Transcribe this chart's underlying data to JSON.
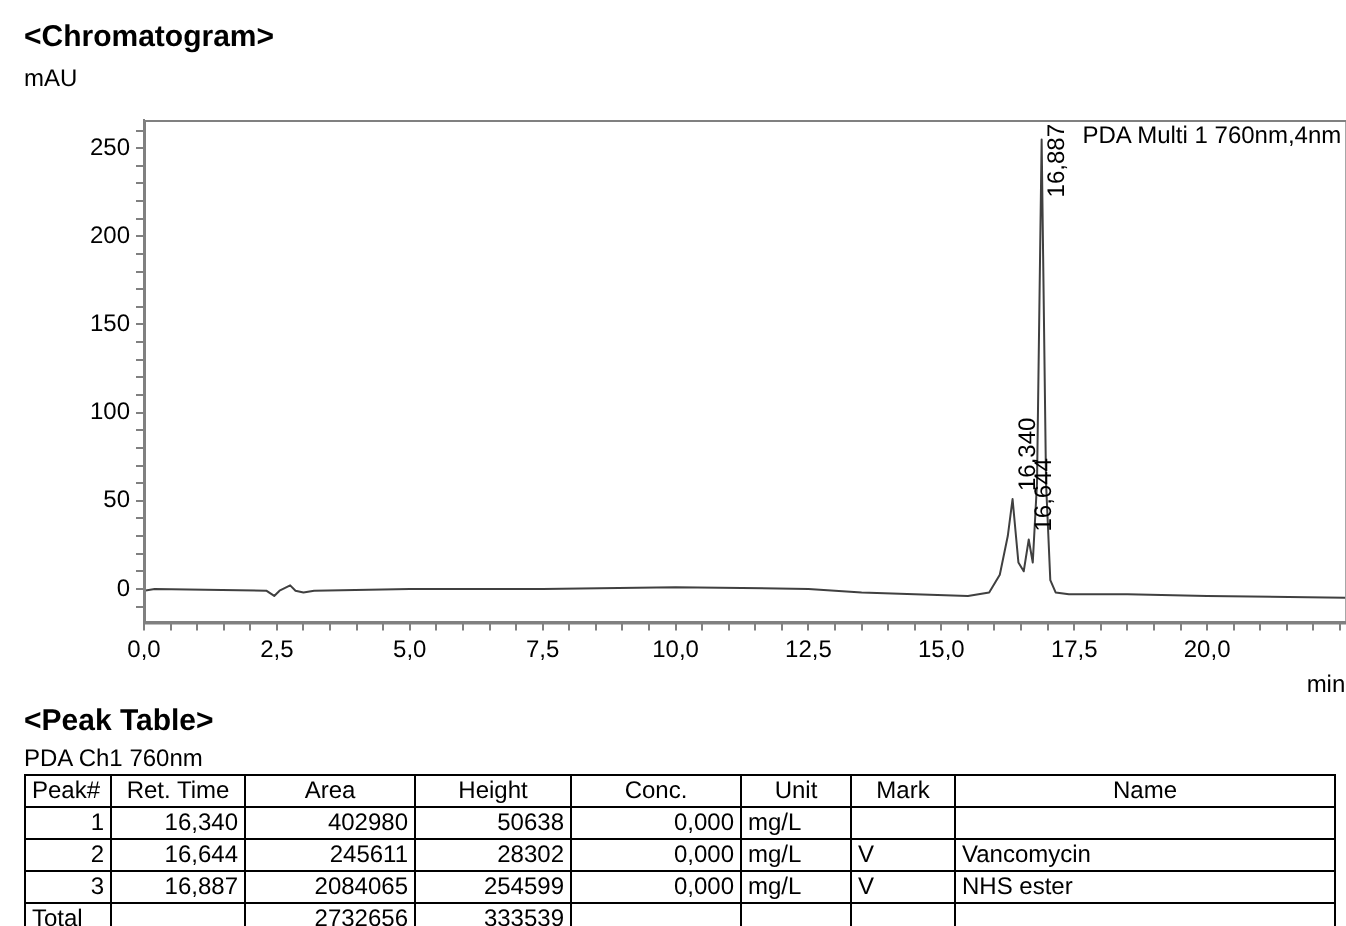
{
  "chart_data": [
    {
      "type": "line",
      "title": "<Chromatogram>",
      "xlabel": "min",
      "ylabel": "mAU",
      "color": "#404040",
      "grid": false,
      "legend": false,
      "marker": "none",
      "x": [
        0,
        0.2,
        2.3,
        2.45,
        2.55,
        2.75,
        2.85,
        3.0,
        3.2,
        5,
        7.5,
        10,
        12.5,
        13.5,
        14.5,
        15.5,
        15.9,
        16.1,
        16.25,
        16.34,
        16.45,
        16.55,
        16.644,
        16.72,
        16.8,
        16.887,
        16.97,
        17.05,
        17.15,
        17.4,
        18.5,
        20,
        22.6
      ],
      "values": [
        -1,
        0,
        -1,
        -4,
        -1,
        2,
        -1,
        -2,
        -1,
        0,
        0,
        1,
        0,
        -2,
        -3,
        -4,
        -2,
        8,
        30,
        51,
        15,
        10,
        28,
        15,
        60,
        255,
        60,
        5,
        -2,
        -3,
        -3,
        -4,
        -5
      ],
      "xlim": [
        0,
        22.6
      ],
      "xticks": [
        {
          "value": 0,
          "label": "0,0"
        },
        {
          "value": 0.5,
          "label": null
        },
        {
          "value": 1,
          "label": null
        },
        {
          "value": 1.5,
          "label": null
        },
        {
          "value": 2,
          "label": null
        },
        {
          "value": 2.5,
          "label": "2,5"
        },
        {
          "value": 3,
          "label": null
        },
        {
          "value": 3.5,
          "label": null
        },
        {
          "value": 4,
          "label": null
        },
        {
          "value": 4.5,
          "label": null
        },
        {
          "value": 5,
          "label": "5,0"
        },
        {
          "value": 5.5,
          "label": null
        },
        {
          "value": 6,
          "label": null
        },
        {
          "value": 6.5,
          "label": null
        },
        {
          "value": 7,
          "label": null
        },
        {
          "value": 7.5,
          "label": "7,5"
        },
        {
          "value": 8,
          "label": null
        },
        {
          "value": 8.5,
          "label": null
        },
        {
          "value": 9,
          "label": null
        },
        {
          "value": 9.5,
          "label": null
        },
        {
          "value": 10,
          "label": "10,0"
        },
        {
          "value": 10.5,
          "label": null
        },
        {
          "value": 11,
          "label": null
        },
        {
          "value": 11.5,
          "label": null
        },
        {
          "value": 12,
          "label": null
        },
        {
          "value": 12.5,
          "label": "12,5"
        },
        {
          "value": 13,
          "label": null
        },
        {
          "value": 13.5,
          "label": null
        },
        {
          "value": 14,
          "label": null
        },
        {
          "value": 14.5,
          "label": null
        },
        {
          "value": 15,
          "label": "15,0"
        },
        {
          "value": 15.5,
          "label": null
        },
        {
          "value": 16,
          "label": null
        },
        {
          "value": 16.5,
          "label": null
        },
        {
          "value": 17,
          "label": null
        },
        {
          "value": 17.5,
          "label": "17,5"
        },
        {
          "value": 18,
          "label": null
        },
        {
          "value": 18.5,
          "label": null
        },
        {
          "value": 19,
          "label": null
        },
        {
          "value": 19.5,
          "label": null
        },
        {
          "value": 20,
          "label": "20,0"
        },
        {
          "value": 20.5,
          "label": null
        },
        {
          "value": 21,
          "label": null
        },
        {
          "value": 21.5,
          "label": null
        },
        {
          "value": 22,
          "label": null
        },
        {
          "value": 22.5,
          "label": null
        }
      ],
      "ylim": [
        -19,
        266
      ],
      "yticks": [
        {
          "value": -10,
          "label": null
        },
        0,
        {
          "value": 10,
          "label": null
        },
        {
          "value": 20,
          "label": null
        },
        {
          "value": 30,
          "label": null
        },
        {
          "value": 40,
          "label": null
        },
        50,
        {
          "value": 60,
          "label": null
        },
        {
          "value": 70,
          "label": null
        },
        {
          "value": 80,
          "label": null
        },
        {
          "value": 90,
          "label": null
        },
        100,
        {
          "value": 110,
          "label": null
        },
        {
          "value": 120,
          "label": null
        },
        {
          "value": 130,
          "label": null
        },
        {
          "value": 140,
          "label": null
        },
        150,
        {
          "value": 160,
          "label": null
        },
        {
          "value": 170,
          "label": null
        },
        {
          "value": 180,
          "label": null
        },
        {
          "value": 190,
          "label": null
        },
        200,
        {
          "value": 210,
          "label": null
        },
        {
          "value": 220,
          "label": null
        },
        {
          "value": 230,
          "label": null
        },
        {
          "value": 240,
          "label": null
        },
        250,
        {
          "value": 260,
          "label": null
        }
      ],
      "annotations": [
        "PDA Multi 1 760nm,4nm",
        {
          "text": "16,340",
          "x": 16.34,
          "y": 51
        },
        {
          "text": "16,644",
          "x": 16.644,
          "y": 28
        },
        {
          "text": "16,887",
          "x": 16.887,
          "y": 255
        }
      ]
    },
    {
      "type": "other",
      "title": "<Peak Table>",
      "subtitle": "PDA Ch1 760nm",
      "categories": [
        "Peak#",
        "Ret. Time",
        "Area",
        "Height",
        "Conc.",
        "Unit",
        "Mark",
        "Name"
      ],
      "annotations": [
        "1",
        "16,340",
        "402980",
        "50638",
        "0,000",
        "mg/L",
        null,
        null,
        "2",
        "16,644",
        "245611",
        "28302",
        "0,000",
        "mg/L",
        "V",
        "Vancomycin",
        "3",
        "16,887",
        "2084065",
        "254599",
        "0,000",
        "mg/L",
        "V",
        "NHS ester",
        "Total",
        null,
        "2732656",
        "333539",
        null,
        null,
        null,
        null
      ]
    }
  ]
}
